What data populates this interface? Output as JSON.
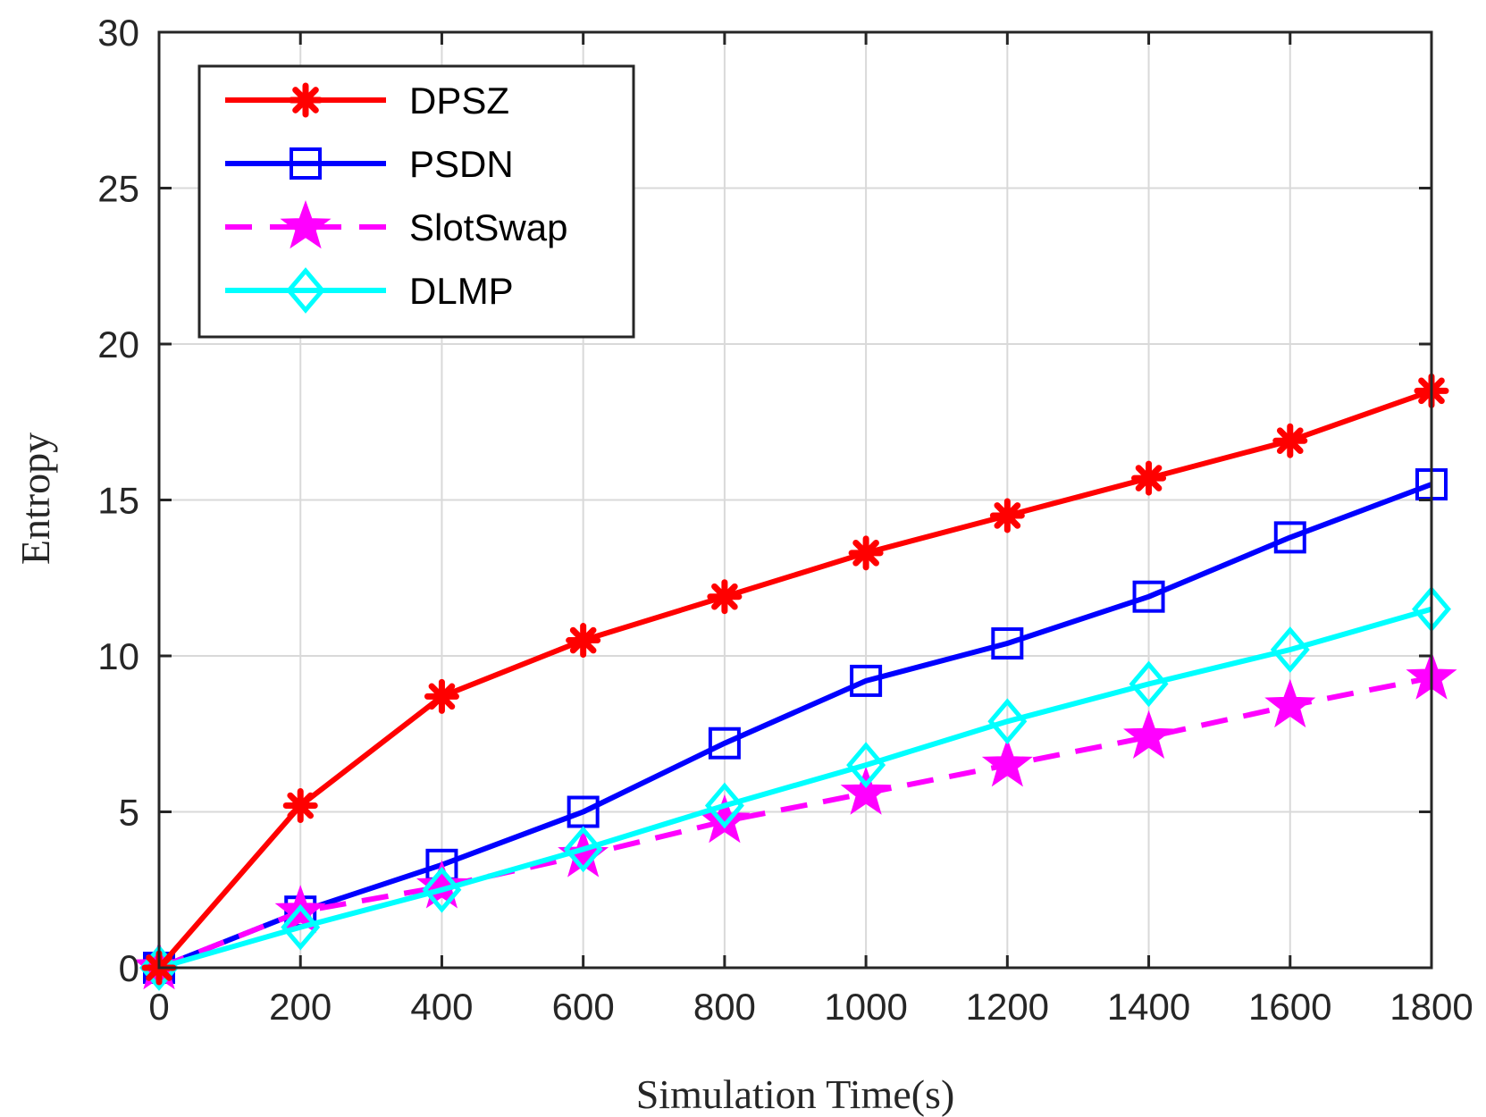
{
  "chart_data": {
    "type": "line",
    "title": "",
    "xlabel": "Simulation Time(s)",
    "ylabel": "Entropy",
    "xlim": [
      0,
      1800
    ],
    "ylim": [
      0,
      30
    ],
    "xticks": [
      "0",
      "200",
      "400",
      "600",
      "800",
      "1000",
      "1200",
      "1400",
      "1600",
      "1800"
    ],
    "yticks": [
      "0",
      "5",
      "10",
      "15",
      "20",
      "25",
      "30"
    ],
    "grid": true,
    "legend_position": "top-left",
    "x": [
      0,
      200,
      400,
      600,
      800,
      1000,
      1200,
      1400,
      1600,
      1800
    ],
    "series": [
      {
        "name": "DPSZ",
        "color": "#ff0000",
        "marker": "asterisk",
        "dashed": false,
        "values": [
          0,
          5.2,
          8.7,
          10.5,
          11.9,
          13.3,
          14.5,
          15.7,
          16.9,
          18.5
        ]
      },
      {
        "name": "PSDN",
        "color": "#0000ff",
        "marker": "square",
        "dashed": false,
        "values": [
          0,
          1.8,
          3.3,
          5.0,
          7.2,
          9.2,
          10.4,
          11.9,
          13.8,
          15.5
        ]
      },
      {
        "name": "SlotSwap",
        "color": "#ff00ff",
        "marker": "pentagram",
        "dashed": true,
        "values": [
          0,
          1.8,
          2.6,
          3.6,
          4.7,
          5.6,
          6.5,
          7.4,
          8.4,
          9.3
        ]
      },
      {
        "name": "DLMP",
        "color": "#00ffff",
        "marker": "diamond",
        "dashed": false,
        "values": [
          0,
          1.3,
          2.5,
          3.8,
          5.2,
          6.5,
          7.9,
          9.1,
          10.2,
          11.5
        ]
      }
    ]
  }
}
